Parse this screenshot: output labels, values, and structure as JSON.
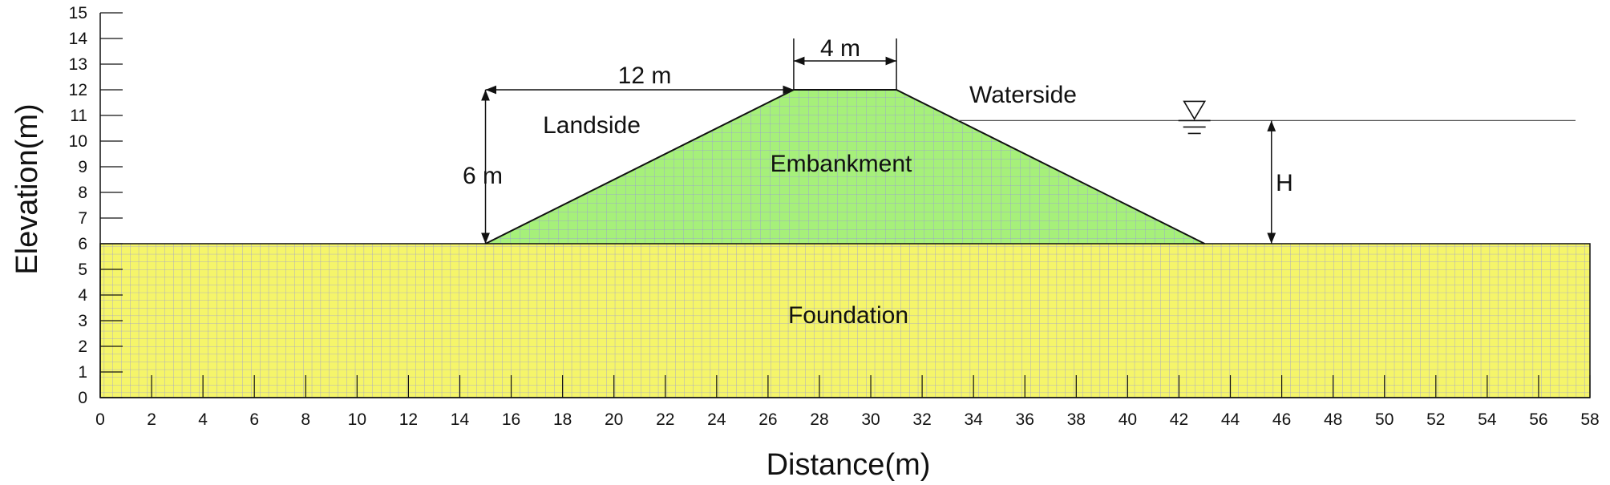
{
  "axes": {
    "x_title": "Distance(m)",
    "y_title": "Elevation(m)",
    "x_range": [
      0,
      58
    ],
    "y_range": [
      0,
      15
    ],
    "x_ticks": [
      "0",
      "2",
      "4",
      "6",
      "8",
      "10",
      "12",
      "14",
      "16",
      "18",
      "20",
      "22",
      "24",
      "26",
      "28",
      "30",
      "32",
      "34",
      "36",
      "38",
      "40",
      "42",
      "44",
      "46",
      "48",
      "50",
      "52",
      "54",
      "56",
      "58"
    ],
    "y_ticks": [
      "0",
      "1",
      "2",
      "3",
      "4",
      "5",
      "6",
      "7",
      "8",
      "9",
      "10",
      "11",
      "12",
      "13",
      "14",
      "15"
    ]
  },
  "geometry": {
    "foundation": {
      "x": [
        0,
        58
      ],
      "y": [
        0,
        6
      ]
    },
    "embankment": {
      "toe_left": 15,
      "crest_left": 27,
      "crest_right": 31,
      "toe_right": 43,
      "base": 6,
      "crest": 12
    },
    "water_level": 10.8,
    "water_start_x": 33.4,
    "water_symbol_x": 42.6,
    "h_marker_x": 45.6
  },
  "labels": {
    "foundation": "Foundation",
    "embankment": "Embankment",
    "landside": "Landside",
    "waterside": "Waterside",
    "height": "6 m",
    "slope_width": "12 m",
    "crest_width": "4 m",
    "water_height": "H"
  },
  "colors": {
    "foundation": "#f5f56a",
    "embankment": "#a6f07a",
    "mesh": "#8e8ee0"
  }
}
